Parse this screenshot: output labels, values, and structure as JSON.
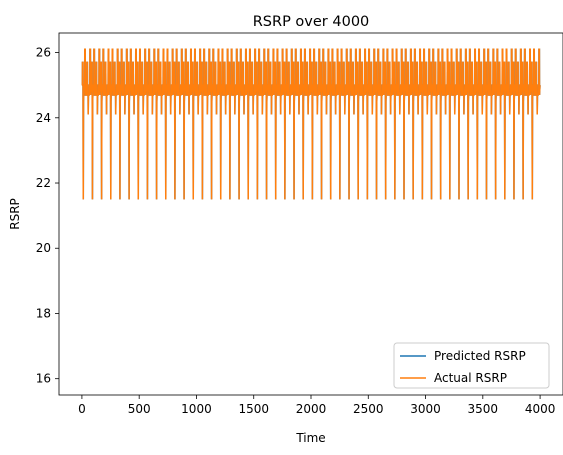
{
  "chart_data": {
    "type": "line",
    "title": "RSRP over 4000",
    "xlabel": "Time",
    "ylabel": "RSRP",
    "xlim": [
      -200,
      4200
    ],
    "ylim": [
      15.5,
      26.6
    ],
    "grid": false,
    "legend_position": "lower-right",
    "x_ticks": [
      0,
      500,
      1000,
      1500,
      2000,
      2500,
      3000,
      3500,
      4000
    ],
    "y_ticks": [
      16,
      18,
      20,
      22,
      24,
      26
    ],
    "x_tick_labels": [
      "0",
      "500",
      "1000",
      "1500",
      "2000",
      "2500",
      "3000",
      "3500",
      "4000"
    ],
    "y_tick_labels": [
      "16",
      "18",
      "20",
      "22",
      "24",
      "26"
    ],
    "series": [
      {
        "name": "Predicted RSRP",
        "color": "#1f77b4",
        "cycle_length": 80,
        "x_start": 0,
        "x_end": 4000,
        "pattern": [
          [
            0,
            25.0
          ],
          [
            4,
            25.0
          ],
          [
            5,
            25.7
          ],
          [
            9,
            25.7
          ],
          [
            10,
            24.5
          ],
          [
            12,
            21.5
          ],
          [
            14,
            24.5
          ],
          [
            18,
            25.0
          ],
          [
            24,
            25.0
          ],
          [
            25,
            26.1
          ],
          [
            29,
            26.1
          ],
          [
            30,
            24.7
          ],
          [
            36,
            24.7
          ],
          [
            37,
            25.0
          ],
          [
            43,
            25.0
          ],
          [
            44,
            25.7
          ],
          [
            48,
            25.7
          ],
          [
            49,
            24.7
          ],
          [
            54,
            24.7
          ],
          [
            55,
            24.1
          ],
          [
            57,
            24.7
          ],
          [
            62,
            24.7
          ],
          [
            63,
            25.0
          ],
          [
            69,
            25.0
          ],
          [
            70,
            26.1
          ],
          [
            74,
            26.1
          ],
          [
            75,
            24.7
          ],
          [
            79,
            25.0
          ]
        ]
      },
      {
        "name": "Actual RSRP",
        "color": "#ff7f0e",
        "cycle_length": 80,
        "x_start": 0,
        "x_end": 4000,
        "pattern": [
          [
            0,
            25.0
          ],
          [
            4,
            25.0
          ],
          [
            5,
            25.7
          ],
          [
            9,
            25.7
          ],
          [
            10,
            24.5
          ],
          [
            12,
            21.5
          ],
          [
            14,
            24.5
          ],
          [
            18,
            25.0
          ],
          [
            24,
            25.0
          ],
          [
            25,
            26.1
          ],
          [
            29,
            26.1
          ],
          [
            30,
            24.7
          ],
          [
            36,
            24.7
          ],
          [
            37,
            25.0
          ],
          [
            43,
            25.0
          ],
          [
            44,
            25.7
          ],
          [
            48,
            25.7
          ],
          [
            49,
            24.7
          ],
          [
            54,
            24.7
          ],
          [
            55,
            24.1
          ],
          [
            57,
            24.7
          ],
          [
            62,
            24.7
          ],
          [
            63,
            25.0
          ],
          [
            69,
            25.0
          ],
          [
            70,
            26.1
          ],
          [
            74,
            26.1
          ],
          [
            75,
            24.7
          ],
          [
            79,
            25.0
          ]
        ]
      }
    ]
  }
}
